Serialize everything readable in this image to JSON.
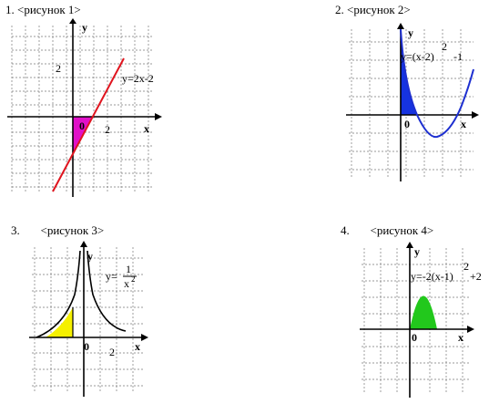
{
  "panels": [
    {
      "caption": "1. <рисунок 1>",
      "y_label": "y",
      "x_label": "x",
      "tick_y": "2",
      "tick_x": "2",
      "origin": "0",
      "formula": "y=2x-2",
      "colors": {
        "line": "#e0141e",
        "fill": "#e011c8"
      }
    },
    {
      "caption": "2. <рисунок 2>",
      "y_label": "y",
      "x_label": "x",
      "origin": "0",
      "formula_main": "y=(x-2)",
      "formula_exp": "2",
      "formula_tail": "-1",
      "colors": {
        "curve": "#1d2fd0",
        "fill": "#1633e0"
      }
    },
    {
      "caption": "3.       <рисунок 3>",
      "y_label": "y",
      "x_label": "x",
      "tick_x": "2",
      "origin": "0",
      "formula_y": "y=",
      "formula_num": "1",
      "formula_den": "x",
      "formula_den_exp": "2",
      "colors": {
        "curve": "#000000",
        "fill": "#f5f000"
      }
    },
    {
      "caption": "4.       <рисунок 4>",
      "y_label": "y",
      "x_label": "x",
      "origin": "0",
      "formula_main": "y=-2(x-1)",
      "formula_exp": "2",
      "formula_tail": "+2",
      "colors": {
        "fill": "#22c81c"
      }
    }
  ]
}
